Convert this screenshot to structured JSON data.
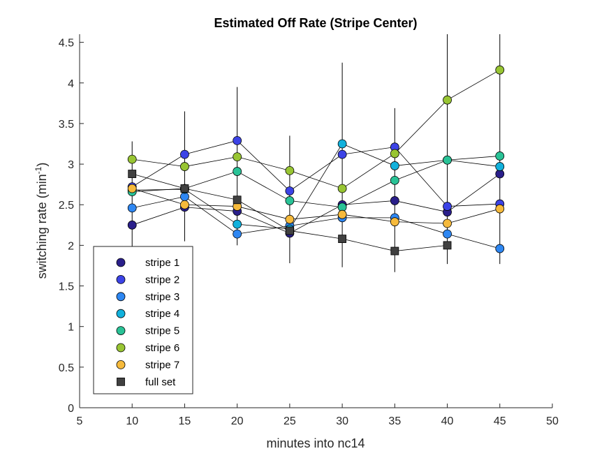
{
  "chart_data": {
    "type": "scatter",
    "title": "Estimated Off Rate (Stripe Center)",
    "xlabel": "minutes into nc14",
    "ylabel_main": "switching rate (min",
    "ylabel_sup": "-1",
    "ylabel_tail": ")",
    "xlim": [
      5,
      50
    ],
    "ylim": [
      0,
      4.6
    ],
    "xticks": [
      5,
      10,
      15,
      20,
      25,
      30,
      35,
      40,
      45,
      50
    ],
    "yticks": [
      0,
      0.5,
      1,
      1.5,
      2,
      2.5,
      3,
      3.5,
      4,
      4.5
    ],
    "legend_position": "bottom-left",
    "x": [
      10,
      15,
      20,
      25,
      30,
      35,
      40,
      45
    ],
    "series": [
      {
        "name": "stripe 1",
        "color": "#2a1f8a",
        "marker": "circle",
        "values": [
          2.25,
          2.47,
          2.42,
          2.15,
          2.5,
          2.55,
          2.41,
          2.88
        ]
      },
      {
        "name": "stripe 2",
        "color": "#3c43e6",
        "marker": "circle",
        "values": [
          2.72,
          3.12,
          3.29,
          2.67,
          3.12,
          3.21,
          2.48,
          2.51
        ]
      },
      {
        "name": "stripe 3",
        "color": "#2e87f2",
        "marker": "circle",
        "values": [
          2.46,
          2.6,
          2.14,
          2.24,
          2.34,
          2.34,
          2.14,
          1.96
        ]
      },
      {
        "name": "stripe 4",
        "color": "#12b1dc",
        "marker": "circle",
        "values": [
          2.68,
          2.69,
          2.26,
          2.2,
          3.25,
          2.98,
          3.05,
          2.97
        ]
      },
      {
        "name": "stripe 5",
        "color": "#29c296",
        "marker": "circle",
        "values": [
          2.66,
          2.7,
          2.91,
          2.55,
          2.47,
          2.8,
          3.05,
          3.1
        ]
      },
      {
        "name": "stripe 6",
        "color": "#98c533",
        "marker": "circle",
        "values": [
          3.06,
          2.97,
          3.09,
          2.92,
          2.7,
          3.13,
          3.79,
          4.16
        ]
      },
      {
        "name": "stripe 7",
        "color": "#f6ba3c",
        "marker": "circle",
        "values": [
          2.7,
          2.5,
          2.48,
          2.32,
          2.38,
          2.29,
          2.27,
          2.45
        ]
      },
      {
        "name": "full set",
        "color": "#404040",
        "marker": "square",
        "values": [
          2.88,
          2.7,
          2.56,
          2.18,
          2.08,
          1.93,
          2.0,
          null
        ]
      }
    ],
    "error_bars": [
      {
        "x": 10,
        "low": 1.98,
        "high": 3.28
      },
      {
        "x": 15,
        "low": 2.05,
        "high": 3.65
      },
      {
        "x": 20,
        "low": 2.0,
        "high": 3.95
      },
      {
        "x": 25,
        "low": 1.78,
        "high": 3.35
      },
      {
        "x": 30,
        "low": 1.73,
        "high": 4.25
      },
      {
        "x": 35,
        "low": 1.67,
        "high": 3.69
      },
      {
        "x": 40,
        "low": 1.77,
        "high": 4.6
      },
      {
        "x": 45,
        "low": 1.77,
        "high": 4.6
      }
    ]
  }
}
